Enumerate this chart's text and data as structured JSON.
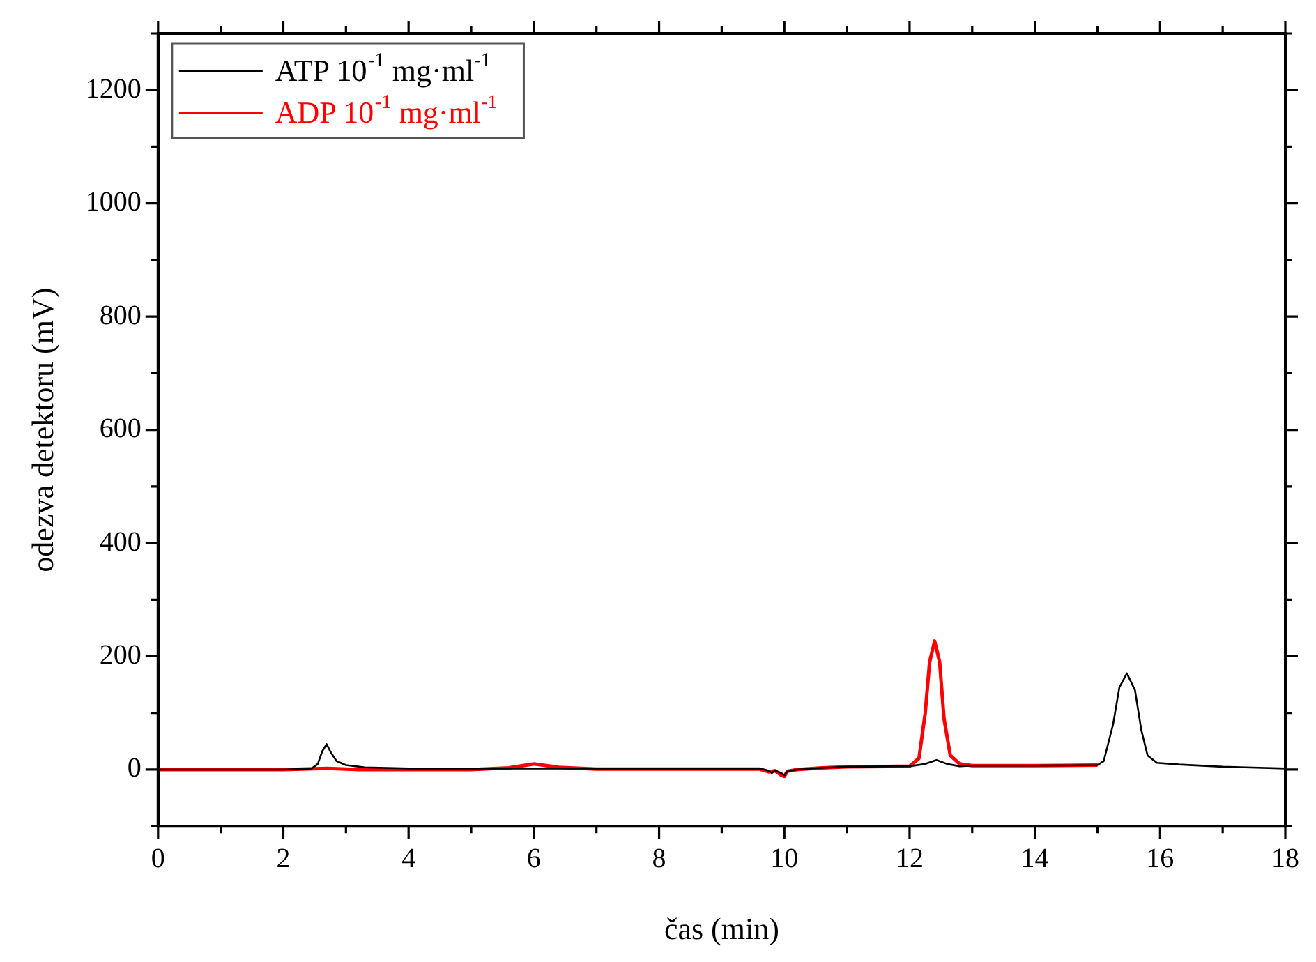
{
  "chart_data": {
    "type": "line",
    "xlabel": "čas (min)",
    "ylabel": "odezva detektoru (mV)",
    "xlim": [
      0,
      18
    ],
    "ylim": [
      -100,
      1300
    ],
    "xticks": [
      0,
      {
        "value": 1,
        "label": null
      },
      2,
      {
        "value": 3,
        "label": null
      },
      4,
      {
        "value": 5,
        "label": null
      },
      6,
      {
        "value": 7,
        "label": null
      },
      8,
      {
        "value": 9,
        "label": null
      },
      10,
      {
        "value": 11,
        "label": null
      },
      12,
      {
        "value": 13,
        "label": null
      },
      14,
      {
        "value": 15,
        "label": null
      },
      16,
      {
        "value": 17,
        "label": null
      },
      18
    ],
    "yticks": [
      {
        "value": -100,
        "label": null
      },
      0,
      {
        "value": 100,
        "label": null
      },
      200,
      {
        "value": 300,
        "label": null
      },
      400,
      {
        "value": 500,
        "label": null
      },
      600,
      {
        "value": 700,
        "label": null
      },
      800,
      {
        "value": 900,
        "label": null
      },
      1000,
      {
        "value": 1100,
        "label": null
      },
      1200,
      {
        "value": 1300,
        "label": null
      }
    ],
    "grid": false,
    "legend": "top left",
    "marker": "none",
    "line_style": "solid",
    "series": [
      {
        "name": "ATP 10$^{-1}$ mg·ml$^{-1}$",
        "color": "#000000",
        "x": [
          0,
          2,
          2.45,
          2.55,
          2.62,
          2.69,
          2.76,
          2.85,
          3.0,
          3.3,
          4,
          6,
          8,
          9.6,
          9.75,
          9.8,
          9.85,
          9.95,
          10.0,
          10.05,
          10.2,
          10.6,
          11,
          12,
          12.25,
          12.43,
          12.6,
          12.8,
          13,
          14,
          15,
          15.1,
          15.25,
          15.35,
          15.47,
          15.6,
          15.7,
          15.8,
          15.95,
          16.3,
          17,
          18
        ],
        "values": [
          0,
          0,
          2,
          10,
          32,
          45,
          30,
          15,
          8,
          4,
          2,
          2,
          2,
          2,
          -2,
          -6,
          -2,
          -6,
          -10,
          -3,
          0,
          3,
          5,
          6,
          10,
          17,
          10,
          6,
          7,
          7,
          8,
          15,
          80,
          145,
          170,
          140,
          70,
          25,
          12,
          9,
          5,
          2
        ]
      },
      {
        "name": "ADP 10$^{-1}$ mg·ml$^{-1}$",
        "color": "#ff0000",
        "x": [
          0,
          2,
          2.7,
          3.2,
          5,
          5.6,
          6.0,
          6.4,
          7,
          9.6,
          9.75,
          9.85,
          9.95,
          10.0,
          10.05,
          10.2,
          10.6,
          11,
          12,
          12.15,
          12.25,
          12.32,
          12.4,
          12.48,
          12.55,
          12.65,
          12.8,
          13,
          14,
          15
        ],
        "values": [
          0,
          0,
          2,
          0,
          0,
          3,
          10,
          4,
          1,
          1,
          -4,
          -2,
          -10,
          -12,
          -3,
          0,
          3,
          5,
          6,
          20,
          100,
          190,
          227,
          190,
          90,
          25,
          10,
          7,
          7,
          8
        ]
      }
    ]
  }
}
